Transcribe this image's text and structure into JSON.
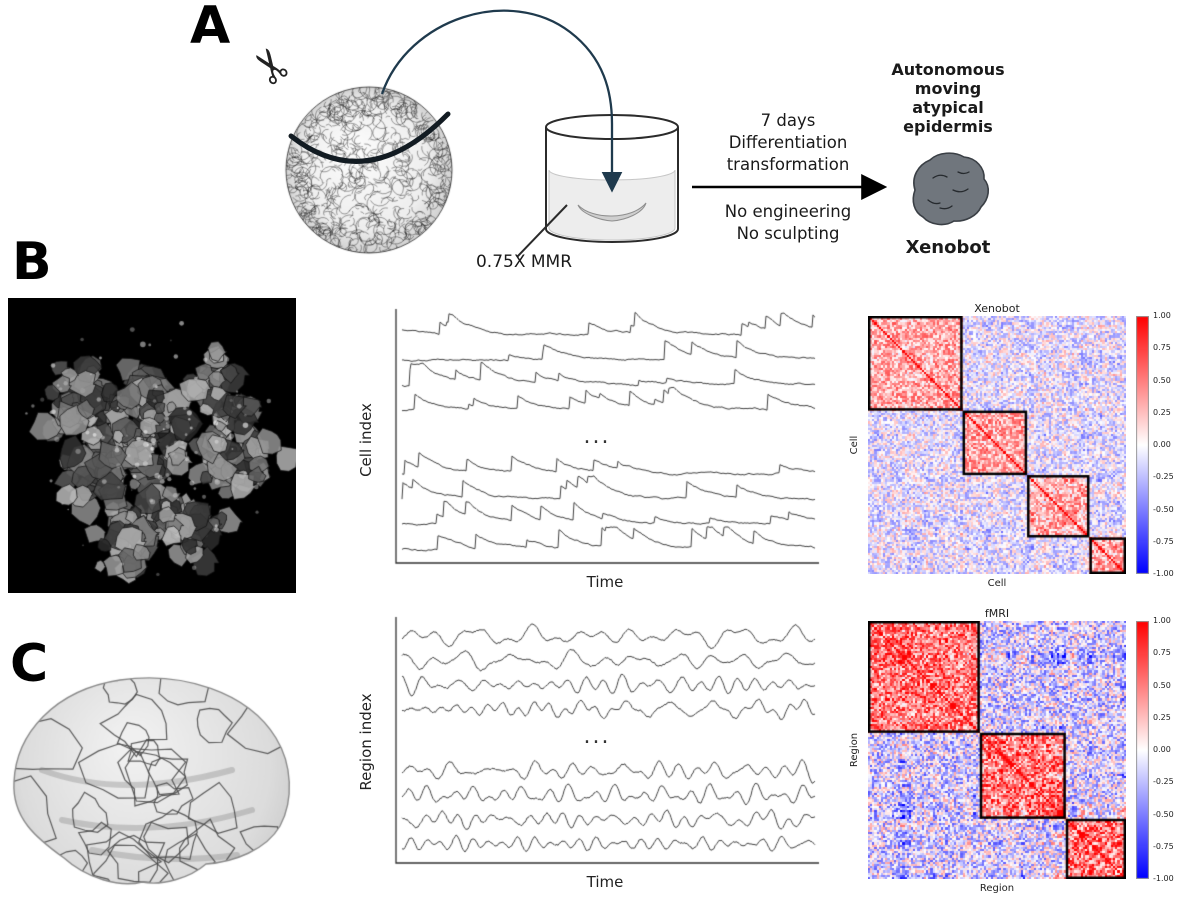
{
  "panels": {
    "a": {
      "label": "A",
      "scissors_icon": "✂",
      "beaker_label": "0.75X MMR",
      "process_top_lines": [
        "7 days",
        "Differentiation",
        "transformation"
      ],
      "process_bottom_lines": [
        "No engineering",
        "No sculpting"
      ],
      "result_title_lines": [
        "Autonomous",
        "moving",
        "atypical",
        "epidermis"
      ],
      "result_label": "Xenobot"
    },
    "b": {
      "label": "B",
      "micrograph_name": "xenobot-fluorescence-micrograph",
      "timeseries": {
        "ylabel": "Cell index",
        "xlabel": "Time",
        "ellipsis": "..."
      },
      "heatmap": {
        "title": "Xenobot",
        "ylabel": "Cell",
        "xlabel": "Cell"
      }
    },
    "c": {
      "label": "C",
      "brain_image_name": "inflated-cortical-surface-parcellation",
      "timeseries": {
        "ylabel": "Region index",
        "xlabel": "Time",
        "ellipsis": "..."
      },
      "heatmap": {
        "title": "fMRI",
        "ylabel": "Region",
        "xlabel": "Region"
      }
    }
  },
  "colorbar": {
    "ticks": [
      "1.00",
      "0.75",
      "0.50",
      "0.25",
      "0.00",
      "-0.25",
      "-0.50",
      "-0.75",
      "-1.00"
    ]
  },
  "chart_data": [
    {
      "id": "cell-traces",
      "type": "line",
      "title": "",
      "xlabel": "Time",
      "ylabel": "Cell index",
      "n_traces_shown": 8,
      "layout": "4 traces above and 4 below an ellipsis indicating omitted cells",
      "signal_style": "slow noisy step-and-spike fluorescence traces",
      "axes": "left and bottom spines only, no ticks",
      "line_color": "#3f3f3f",
      "seed": 7
    },
    {
      "id": "xenobot-corr",
      "type": "heatmap",
      "title": "Xenobot",
      "xlabel": "Cell",
      "ylabel": "Cell",
      "colormap": "blue-white-red",
      "vmin": -1.0,
      "vmax": 1.0,
      "colorbar_ticks": [
        1.0,
        0.75,
        0.5,
        0.25,
        0.0,
        -0.25,
        -0.5,
        -0.75,
        -1.0
      ],
      "n": 120,
      "block_boundaries_fraction": [
        0,
        0.37,
        0.62,
        0.86,
        1.0
      ],
      "within_block_mean": 0.32,
      "between_block_mean": -0.08,
      "noise_sd": 0.26,
      "diagonal_value": 1.0,
      "block_outline_color": "#000000",
      "seed": 11
    },
    {
      "id": "region-traces",
      "type": "line",
      "title": "",
      "xlabel": "Time",
      "ylabel": "Region index",
      "n_traces_shown": 8,
      "layout": "4 traces above and 4 below an ellipsis indicating omitted regions",
      "signal_style": "band-limited oscillatory noise (BOLD-like)",
      "axes": "left and bottom spines only, no ticks",
      "line_color": "#3f3f3f",
      "seed": 23
    },
    {
      "id": "fmri-corr",
      "type": "heatmap",
      "title": "fMRI",
      "xlabel": "Region",
      "ylabel": "Region",
      "colormap": "blue-white-red",
      "vmin": -1.0,
      "vmax": 1.0,
      "colorbar_ticks": [
        1.0,
        0.75,
        0.5,
        0.25,
        0.0,
        -0.25,
        -0.5,
        -0.75,
        -1.0
      ],
      "n": 120,
      "block_boundaries_fraction": [
        0,
        0.43,
        0.77,
        1.0
      ],
      "within_block_mean": 0.52,
      "between_block_mean": -0.14,
      "noise_sd": 0.36,
      "diagonal_value": 1.0,
      "block_outline_color": "#000000",
      "seed": 37
    }
  ]
}
